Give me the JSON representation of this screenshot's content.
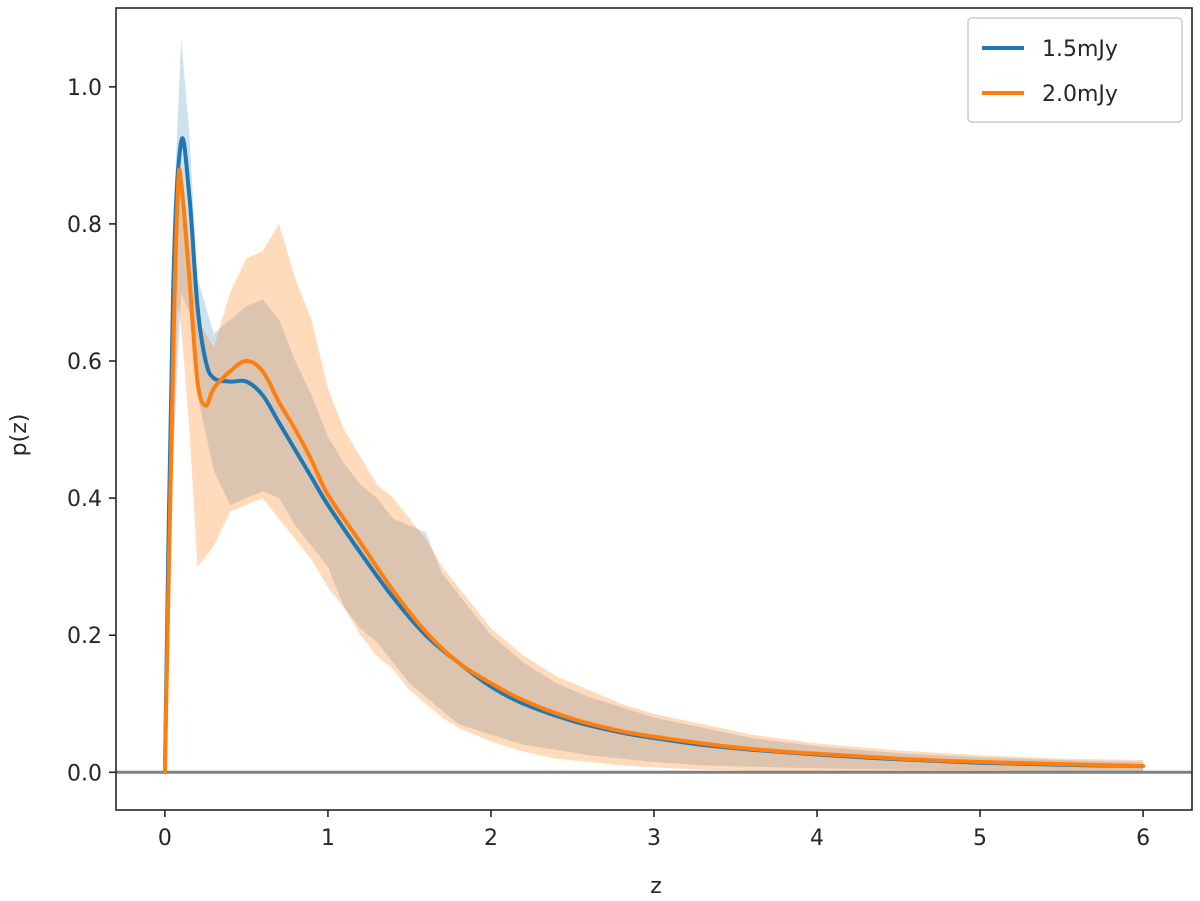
{
  "chart_data": {
    "type": "line",
    "title": "",
    "xlabel": "z",
    "ylabel": "p(z)",
    "xlim": [
      -0.3,
      6.3
    ],
    "ylim": [
      -0.055,
      1.115
    ],
    "xticks": [
      0,
      1,
      2,
      3,
      4,
      5,
      6
    ],
    "xtick_labels": [
      "0",
      "1",
      "2",
      "3",
      "4",
      "5",
      "6"
    ],
    "yticks": [
      0.0,
      0.2,
      0.4,
      0.6,
      0.8,
      1.0
    ],
    "ytick_labels": [
      "0.0",
      "0.2",
      "0.4",
      "0.6",
      "0.8",
      "1.0"
    ],
    "grid": false,
    "legend_position": "top-right",
    "reference_line": {
      "y": 0.0,
      "color": "#808080"
    },
    "series": [
      {
        "name": "1.5mJy",
        "color": "#1f77b4",
        "x": [
          0,
          0.05,
          0.1,
          0.15,
          0.2,
          0.25,
          0.3,
          0.4,
          0.5,
          0.6,
          0.7,
          0.8,
          0.9,
          1.0,
          1.2,
          1.4,
          1.6,
          1.8,
          2.0,
          2.2,
          2.5,
          2.8,
          3.0,
          3.3,
          3.6,
          4.0,
          4.5,
          5.0,
          5.5,
          6.0
        ],
        "y": [
          0,
          0.7,
          0.92,
          0.84,
          0.68,
          0.6,
          0.575,
          0.57,
          0.57,
          0.55,
          0.51,
          0.47,
          0.43,
          0.39,
          0.32,
          0.255,
          0.2,
          0.16,
          0.125,
          0.1,
          0.075,
          0.058,
          0.05,
          0.04,
          0.033,
          0.026,
          0.019,
          0.014,
          0.011,
          0.009
        ],
        "band_x": [
          0,
          0.05,
          0.1,
          0.15,
          0.2,
          0.3,
          0.4,
          0.5,
          0.6,
          0.7,
          0.8,
          0.9,
          1.0,
          1.1,
          1.2,
          1.3,
          1.4,
          1.5,
          1.6,
          1.7,
          1.8,
          2.0,
          2.2,
          2.4,
          2.6,
          2.8,
          3.0,
          3.3,
          3.6,
          4.0,
          4.5,
          5.0,
          5.5,
          6.0
        ],
        "band_upper": [
          0,
          0.8,
          1.07,
          0.93,
          0.72,
          0.64,
          0.66,
          0.68,
          0.69,
          0.66,
          0.6,
          0.55,
          0.49,
          0.45,
          0.42,
          0.4,
          0.37,
          0.36,
          0.35,
          0.29,
          0.26,
          0.2,
          0.16,
          0.13,
          0.11,
          0.095,
          0.08,
          0.065,
          0.05,
          0.038,
          0.028,
          0.022,
          0.018,
          0.015
        ],
        "band_lower": [
          0,
          0.45,
          0.7,
          0.67,
          0.55,
          0.44,
          0.39,
          0.4,
          0.41,
          0.4,
          0.36,
          0.33,
          0.3,
          0.24,
          0.21,
          0.19,
          0.16,
          0.13,
          0.11,
          0.09,
          0.07,
          0.055,
          0.04,
          0.033,
          0.025,
          0.02,
          0.015,
          0.01,
          0.008,
          0.006,
          0.004,
          0.003,
          0.002,
          0.001
        ]
      },
      {
        "name": "2.0mJy",
        "color": "#ff7f0e",
        "x": [
          0,
          0.05,
          0.08,
          0.1,
          0.15,
          0.2,
          0.25,
          0.3,
          0.4,
          0.5,
          0.6,
          0.7,
          0.8,
          0.9,
          1.0,
          1.2,
          1.4,
          1.6,
          1.8,
          2.0,
          2.2,
          2.5,
          2.8,
          3.0,
          3.3,
          3.6,
          4.0,
          4.5,
          5.0,
          5.5,
          6.0
        ],
        "y": [
          0,
          0.6,
          0.85,
          0.86,
          0.72,
          0.57,
          0.535,
          0.56,
          0.585,
          0.6,
          0.585,
          0.54,
          0.5,
          0.455,
          0.405,
          0.335,
          0.265,
          0.205,
          0.16,
          0.13,
          0.105,
          0.078,
          0.06,
          0.052,
          0.042,
          0.034,
          0.027,
          0.02,
          0.015,
          0.012,
          0.009
        ],
        "band_x": [
          0,
          0.05,
          0.08,
          0.1,
          0.15,
          0.2,
          0.3,
          0.4,
          0.5,
          0.6,
          0.7,
          0.8,
          0.9,
          1.0,
          1.1,
          1.2,
          1.3,
          1.4,
          1.5,
          1.6,
          1.7,
          1.8,
          2.0,
          2.2,
          2.4,
          2.6,
          2.8,
          3.0,
          3.3,
          3.6,
          4.0,
          4.5,
          5.0,
          5.5,
          6.0
        ],
        "band_upper": [
          0,
          0.7,
          0.9,
          0.88,
          0.78,
          0.66,
          0.62,
          0.7,
          0.75,
          0.76,
          0.8,
          0.72,
          0.66,
          0.56,
          0.5,
          0.46,
          0.42,
          0.4,
          0.37,
          0.34,
          0.3,
          0.27,
          0.21,
          0.17,
          0.14,
          0.12,
          0.1,
          0.085,
          0.07,
          0.055,
          0.042,
          0.032,
          0.025,
          0.02,
          0.018
        ],
        "band_lower": [
          0,
          0.45,
          0.68,
          0.65,
          0.5,
          0.3,
          0.33,
          0.38,
          0.39,
          0.4,
          0.37,
          0.34,
          0.31,
          0.27,
          0.24,
          0.2,
          0.17,
          0.15,
          0.12,
          0.1,
          0.08,
          0.065,
          0.045,
          0.03,
          0.02,
          0.015,
          0.01,
          0.007,
          0.004,
          0.002,
          0.001,
          0.0005,
          0.0003,
          0.0002,
          0.0001
        ]
      }
    ]
  }
}
